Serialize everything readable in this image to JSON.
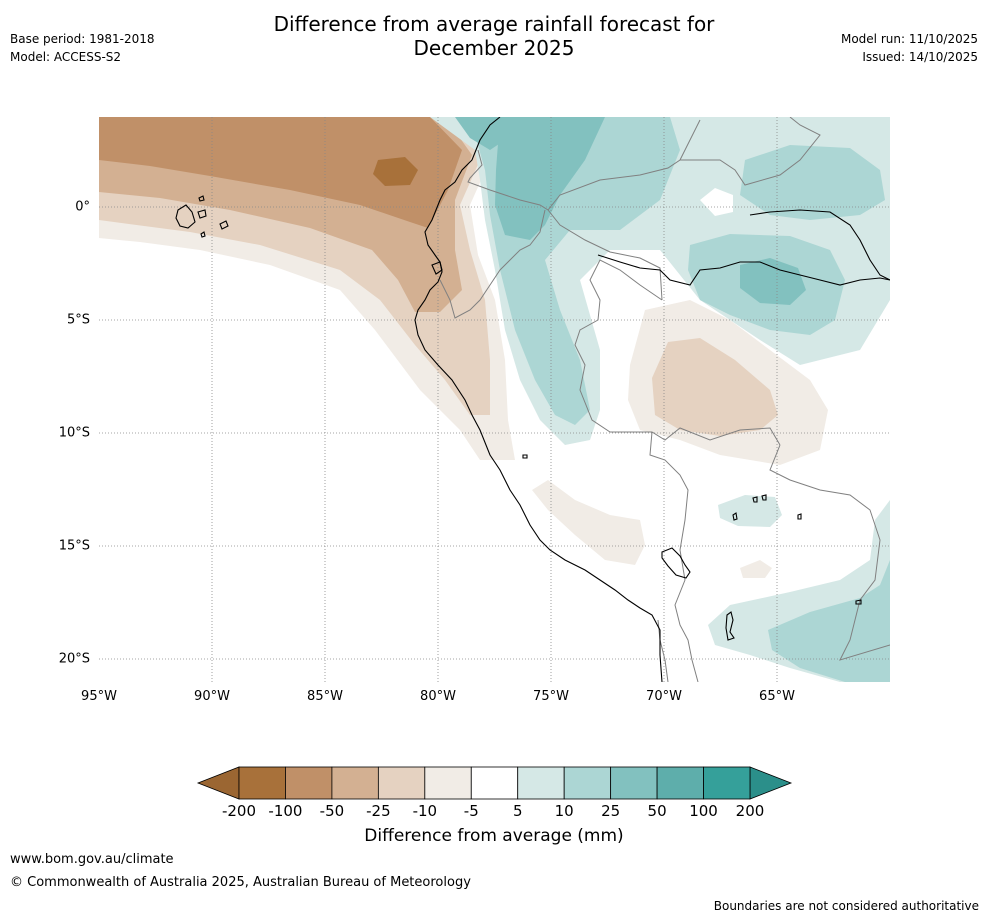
{
  "header": {
    "title_line1": "Difference from average rainfall forecast for",
    "title_line2": "December 2025",
    "base_period": "Base period: 1981-2018",
    "model": "Model: ACCESS-S2",
    "model_run": "Model run: 11/10/2025",
    "issued": "Issued: 14/10/2025"
  },
  "map": {
    "region": "Western South America (Ecuador, Peru, western Brazil)",
    "lat_labels": [
      "0°",
      "5°S",
      "10°S",
      "15°S",
      "20°S"
    ],
    "lon_labels": [
      "95°W",
      "90°W",
      "85°W",
      "80°W",
      "75°W",
      "70°W",
      "65°W"
    ]
  },
  "legend": {
    "title": "Difference from average (mm)",
    "tick_labels": [
      "-200",
      "-100",
      "-50",
      "-25",
      "-10",
      "-5",
      "5",
      "10",
      "25",
      "50",
      "100",
      "200"
    ],
    "colors": [
      "#a8713a",
      "#c09068",
      "#d3b092",
      "#e5d2c1",
      "#f1ece6",
      "#ffffff",
      "#d5e8e6",
      "#acd6d4",
      "#82c1bf",
      "#5eaeab",
      "#35a09a"
    ],
    "below_min_color": "#9b6632",
    "above_max_color": "#2b8f8a"
  },
  "footer": {
    "website": "www.bom.gov.au/climate",
    "copyright": "© Commonwealth of Australia 2025, Australian Bureau of Meteorology",
    "disclaimer": "Boundaries are not considered authoritative"
  }
}
